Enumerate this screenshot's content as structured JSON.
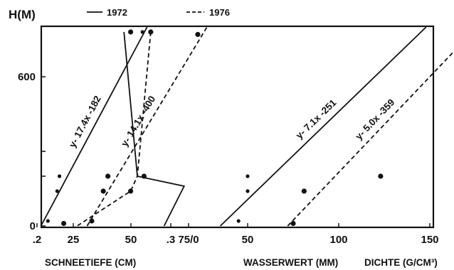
{
  "chart_data": {
    "type": "scatter",
    "y_axis": {
      "label": "H(M)",
      "ticks": [
        {
          "value": 0,
          "label": "0"
        },
        {
          "value": 600,
          "label": "600"
        }
      ],
      "range": [
        0,
        800
      ]
    },
    "legend": {
      "placement": "top",
      "entries": [
        {
          "label": "1972",
          "style": "solid"
        },
        {
          "label": "1976",
          "style": "dashed"
        }
      ]
    },
    "panels": [
      {
        "xlabel": "SCHNEETIEFE (CM)",
        "xlim": [
          0,
          85
        ],
        "ticks": [
          {
            "value": 25,
            "label": "25"
          },
          {
            "value": 50,
            "label": "50"
          },
          {
            "value": 75,
            "label": "75/0"
          }
        ],
        "series": [
          {
            "legend": "1972",
            "style": "solid",
            "points": [
              [
                14,
                20
              ],
              [
                18,
                140
              ],
              [
                19,
                200
              ],
              [
                55,
                780
              ]
            ],
            "line": [
              [
                11,
                0
              ],
              [
                57,
                800
              ]
            ],
            "equation": "y- 17.4x -182"
          },
          {
            "legend": "1976",
            "style": "dashed",
            "points": [
              [
                33,
                20
              ],
              [
                38,
                140
              ],
              [
                40,
                200
              ],
              [
                79,
                770
              ]
            ],
            "line": [
              [
                31,
                0
              ],
              [
                83,
                800
              ]
            ],
            "equation": "y- 14.1x -400"
          }
        ]
      },
      {
        "xlabel": "WASSERWERT (MM)",
        "xlim": [
          0,
          190
        ],
        "ticks": [
          {
            "value": 50,
            "label": "50"
          },
          {
            "value": 100,
            "label": "100"
          },
          {
            "value": 150,
            "label": "150"
          }
        ],
        "series": [
          {
            "legend": "1972",
            "style": "solid",
            "points": [
              [
                45,
                20
              ],
              [
                50,
                140
              ],
              [
                50,
                200
              ]
            ],
            "line": [
              [
                35,
                0
              ],
              [
                148,
                800
              ]
            ],
            "equation": "y- 7.1x -251"
          },
          {
            "legend": "1976",
            "style": "dashed",
            "points": [
              [
                75,
                10
              ],
              [
                81,
                140
              ],
              [
                123,
                200
              ]
            ],
            "line": [
              [
                72,
                0
              ],
              [
                176,
                800
              ]
            ],
            "equation": "y- 5.0x -359"
          }
        ]
      },
      {
        "xlabel": "DICHTE (G/CM³)",
        "xlim": [
          0.17,
          0.33
        ],
        "ticks": [
          {
            "value": 0.2,
            "label": ".2"
          },
          {
            "value": 0.3,
            "label": ".3"
          }
        ],
        "series": [
          {
            "legend": "1976",
            "style": "points",
            "points": [
              [
                0.27,
                780
              ],
              [
                0.285,
                780
              ],
              [
                0.22,
                10
              ],
              [
                0.27,
                140
              ],
              [
                0.28,
                200
              ]
            ]
          },
          {
            "legend": "1972",
            "style": "solid",
            "line": [
              [
                0.265,
                780
              ],
              [
                0.275,
                200
              ],
              [
                0.31,
                160
              ],
              [
                0.295,
                0
              ]
            ]
          },
          {
            "legend": "1976",
            "style": "dashed",
            "line": [
              [
                0.285,
                780
              ],
              [
                0.275,
                200
              ],
              [
                0.27,
                140
              ],
              [
                0.23,
                0
              ]
            ]
          }
        ]
      }
    ]
  }
}
